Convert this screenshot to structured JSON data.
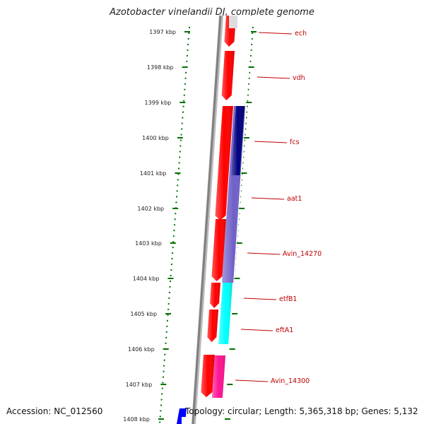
{
  "title": "Azotobacter vinelandii DJ, complete genome",
  "footer": {
    "accession": "Accession: NC_012560",
    "topology": "Topology: circular; Length: 5,365,318 bp; Genes: 5,132"
  },
  "kbp_labels": [
    "1397 kbp",
    "1398 kbp",
    "1399 kbp",
    "1400 kbp",
    "1401 kbp",
    "1402 kbp",
    "1403 kbp",
    "1404 kbp",
    "1405 kbp",
    "1406 kbp",
    "1407 kbp",
    "1408 kbp"
  ],
  "genes": [
    "ech",
    "vdh",
    "fcs",
    "aat1",
    "Avin_14270",
    "etfB1",
    "eftA1",
    "Avin_14300"
  ],
  "colors": {
    "cds_forward": "#ff0000",
    "cds_blue": "#7060c8",
    "cds_navy": "#000080",
    "cds_cyan": "#00ffff",
    "cds_pink": "#ff1493",
    "label": "#c00000",
    "tick": "#007000",
    "backbone": "#808080"
  }
}
